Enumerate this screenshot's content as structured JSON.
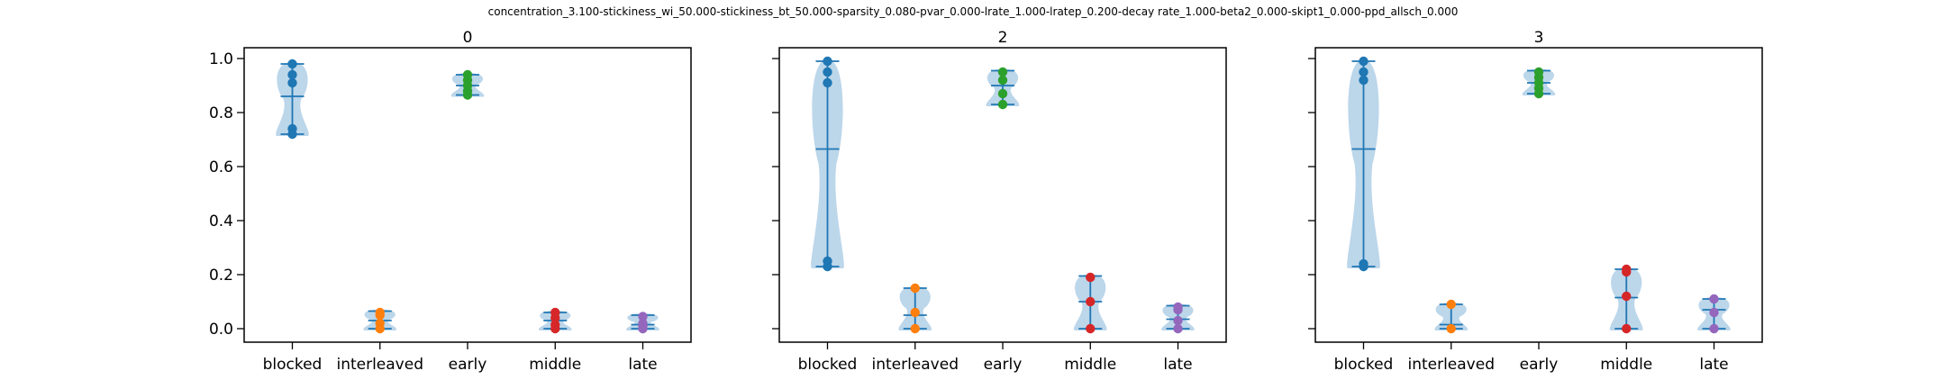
{
  "figure": {
    "title": "concentration_3.100-stickiness_wi_50.000-stickiness_bt_50.000-sparsity_0.080-pvar_0.000-lrate_1.000-lratep_0.200-decay rate_1.000-beta2_0.000-skipt1_0.000-ppd_allsch_0.000"
  },
  "colors": {
    "violin_fill": "#a6c8e3",
    "stat_lines": "#1f77b4",
    "blocked": "#1f77b4",
    "interleaved": "#ff7f0e",
    "early": "#2ca02c",
    "middle": "#d62728",
    "late": "#9467bd"
  },
  "chart_data": [
    {
      "type": "violin",
      "title": "0",
      "categories": [
        "blocked",
        "interleaved",
        "early",
        "middle",
        "late"
      ],
      "ylim": [
        -0.05,
        1.04
      ],
      "yticks": [
        "0.0",
        "0.2",
        "0.4",
        "0.6",
        "0.8",
        "1.0"
      ],
      "ytick_values": [
        0.0,
        0.2,
        0.4,
        0.6,
        0.8,
        1.0
      ],
      "show_ytick_labels": true,
      "groups": [
        {
          "points": [
            0.98,
            0.94,
            0.91,
            0.74,
            0.72
          ],
          "min": 0.72,
          "max": 0.98,
          "mean": 0.86
        },
        {
          "points": [
            0.06,
            0.05,
            0.02,
            0.0
          ],
          "min": 0.0,
          "max": 0.065,
          "mean": 0.03
        },
        {
          "points": [
            0.94,
            0.92,
            0.9,
            0.88,
            0.865
          ],
          "min": 0.865,
          "max": 0.94,
          "mean": 0.9
        },
        {
          "points": [
            0.06,
            0.04,
            0.015,
            0.0
          ],
          "min": 0.0,
          "max": 0.06,
          "mean": 0.03
        },
        {
          "points": [
            0.045,
            0.02,
            0.01,
            0.0
          ],
          "min": 0.0,
          "max": 0.05,
          "mean": 0.015
        }
      ]
    },
    {
      "type": "violin",
      "title": "2",
      "categories": [
        "blocked",
        "interleaved",
        "early",
        "middle",
        "late"
      ],
      "ylim": [
        -0.05,
        1.04
      ],
      "yticks": [
        "0.0",
        "0.2",
        "0.4",
        "0.6",
        "0.8",
        "1.0"
      ],
      "ytick_values": [
        0.0,
        0.2,
        0.4,
        0.6,
        0.8,
        1.0
      ],
      "show_ytick_labels": false,
      "groups": [
        {
          "points": [
            0.99,
            0.95,
            0.91,
            0.25,
            0.23
          ],
          "min": 0.23,
          "max": 0.99,
          "mean": 0.665
        },
        {
          "points": [
            0.15,
            0.06,
            0.0
          ],
          "min": 0.0,
          "max": 0.15,
          "mean": 0.05
        },
        {
          "points": [
            0.95,
            0.92,
            0.87,
            0.83
          ],
          "min": 0.83,
          "max": 0.955,
          "mean": 0.9
        },
        {
          "points": [
            0.19,
            0.1,
            0.0
          ],
          "min": 0.0,
          "max": 0.195,
          "mean": 0.1
        },
        {
          "points": [
            0.08,
            0.07,
            0.03,
            0.0
          ],
          "min": 0.0,
          "max": 0.085,
          "mean": 0.035
        }
      ]
    },
    {
      "type": "violin",
      "title": "3",
      "categories": [
        "blocked",
        "interleaved",
        "early",
        "middle",
        "late"
      ],
      "ylim": [
        -0.05,
        1.04
      ],
      "yticks": [
        "0.0",
        "0.2",
        "0.4",
        "0.6",
        "0.8",
        "1.0"
      ],
      "ytick_values": [
        0.0,
        0.2,
        0.4,
        0.6,
        0.8,
        1.0
      ],
      "show_ytick_labels": false,
      "groups": [
        {
          "points": [
            0.99,
            0.95,
            0.92,
            0.24,
            0.23
          ],
          "min": 0.23,
          "max": 0.99,
          "mean": 0.665
        },
        {
          "points": [
            0.09,
            0.0
          ],
          "min": 0.0,
          "max": 0.09,
          "mean": 0.015
        },
        {
          "points": [
            0.95,
            0.93,
            0.91,
            0.89,
            0.87
          ],
          "min": 0.87,
          "max": 0.955,
          "mean": 0.91
        },
        {
          "points": [
            0.22,
            0.21,
            0.12,
            0.0
          ],
          "min": 0.0,
          "max": 0.22,
          "mean": 0.115
        },
        {
          "points": [
            0.11,
            0.06,
            0.0
          ],
          "min": 0.0,
          "max": 0.11,
          "mean": 0.07
        }
      ]
    }
  ]
}
